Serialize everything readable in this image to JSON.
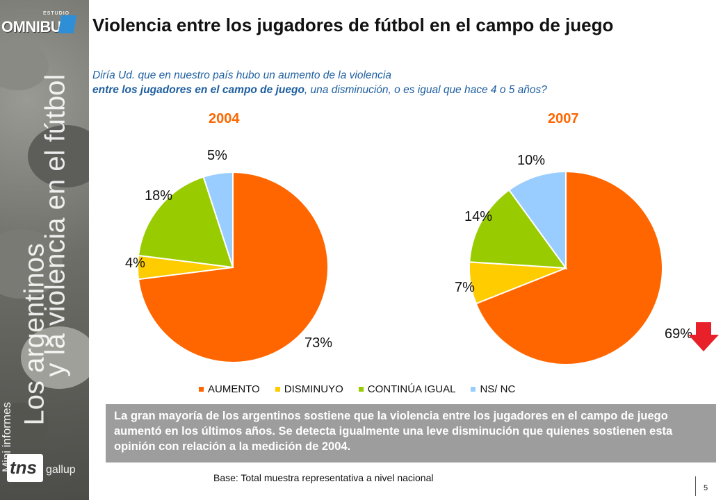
{
  "brand": {
    "studio": "ESTUDIO",
    "name": "OMNIBUS"
  },
  "sidebar": {
    "series_line1": "Los argentinos",
    "series_line2": "y la violencia en el fútbol",
    "series_label": "Mini informes",
    "logo_main": "tns",
    "logo_sub": "gallup"
  },
  "header": {
    "title": "Violencia entre los jugadores de fútbol en el campo de juego",
    "question_line1": "Diría Ud. que en nuestro país hubo un aumento de la violencia",
    "question_bold": "entre los jugadores en el campo de juego",
    "question_rest": ", una disminución, o es igual que hace 4 o 5 años?"
  },
  "colors": {
    "aumento": "#ff6600",
    "disminuyo": "#ffcc00",
    "continua": "#99cc00",
    "nsnc": "#99ccff",
    "year": "#ff6600",
    "arrow": "#e8202a"
  },
  "chart_data": [
    {
      "type": "pie",
      "title": "2004",
      "categories": [
        "AUMENTO",
        "DISMINUYO",
        "CONTINÚA IGUAL",
        "NS/ NC"
      ],
      "values": [
        73,
        4,
        18,
        5
      ],
      "labels": [
        "73%",
        "4%",
        "18%",
        "5%"
      ]
    },
    {
      "type": "pie",
      "title": "2007",
      "categories": [
        "AUMENTO",
        "DISMINUYO",
        "CONTINÚA IGUAL",
        "NS/ NC"
      ],
      "values": [
        69,
        7,
        14,
        10
      ],
      "labels": [
        "69%",
        "7%",
        "14%",
        "10%"
      ]
    }
  ],
  "legend": [
    "AUMENTO",
    "DISMINUYO",
    "CONTINÚA IGUAL",
    "NS/ NC"
  ],
  "conclusion": "La gran mayoría de los argentinos sostiene que la violencia entre los jugadores en el campo de juego aumentó en los últimos años. Se detecta igualmente una leve disminución que quienes sostienen esta opinión con relación a la medición de 2004.",
  "footer": {
    "base": "Base: Total muestra representativa a nivel nacional",
    "page": "5"
  }
}
